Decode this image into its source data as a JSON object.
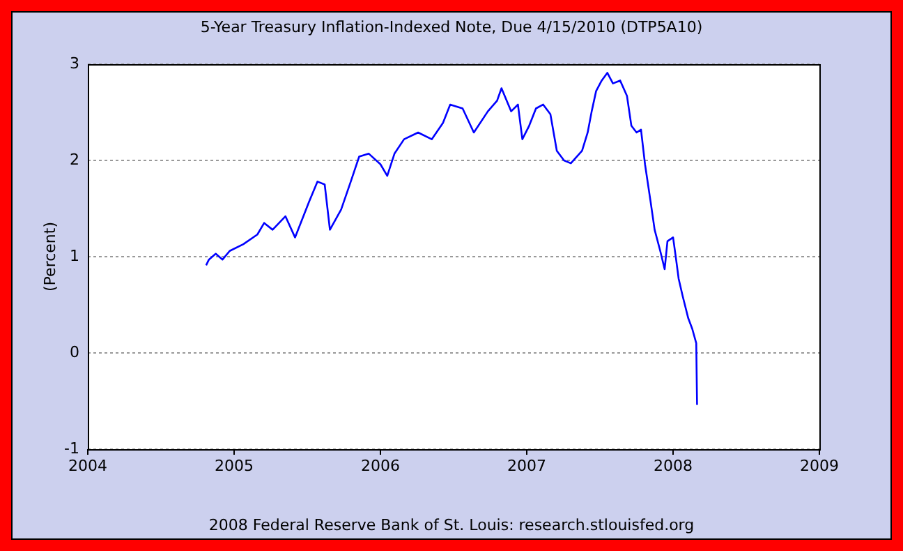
{
  "chart_data": {
    "type": "line",
    "title": "5-Year Treasury Inflation-Indexed Note, Due 4/15/2010 (DTP5A10)",
    "ylabel": "(Percent)",
    "annotations": [
      "2008 Federal Reserve Bank of St. Louis: research.stlouisfed.org"
    ],
    "x": [
      "2004-10-23",
      "2004-10-30",
      "2004-11-16",
      "2004-12-03",
      "2004-12-21",
      "2005-01-24",
      "2005-02-28",
      "2005-03-17",
      "2005-04-07",
      "2005-05-09",
      "2005-06-02",
      "2005-07-07",
      "2005-07-28",
      "2005-08-15",
      "2005-08-28",
      "2005-09-25",
      "2005-10-19",
      "2005-11-09",
      "2005-12-03",
      "2006-01-01",
      "2006-01-18",
      "2006-02-05",
      "2006-03-01",
      "2006-04-05",
      "2006-05-09",
      "2006-06-06",
      "2006-06-24",
      "2006-07-25",
      "2006-08-22",
      "2006-09-26",
      "2006-10-19",
      "2006-10-30",
      "2006-11-23",
      "2006-12-10",
      "2006-12-21",
      "2007-01-07",
      "2007-01-24",
      "2007-02-11",
      "2007-03-01",
      "2007-03-17",
      "2007-04-04",
      "2007-04-21",
      "2007-05-19",
      "2007-06-02",
      "2007-06-12",
      "2007-06-23",
      "2007-07-07",
      "2007-07-21",
      "2007-08-04",
      "2007-08-22",
      "2007-09-08",
      "2007-09-19",
      "2007-10-02",
      "2007-10-13",
      "2007-10-23",
      "2007-11-06",
      "2007-11-16",
      "2007-11-30",
      "2007-12-11",
      "2007-12-18",
      "2008-01-01",
      "2008-01-08",
      "2008-01-15",
      "2008-01-25",
      "2008-02-08",
      "2008-02-18",
      "2008-02-28",
      "2008-03-01"
    ],
    "series": [
      {
        "color": "#0000ff",
        "values": [
          0.91,
          0.97,
          1.03,
          0.97,
          1.06,
          1.13,
          1.23,
          1.35,
          1.28,
          1.42,
          1.2,
          1.57,
          1.78,
          1.75,
          1.28,
          1.49,
          1.78,
          2.04,
          2.07,
          1.96,
          1.84,
          2.07,
          2.22,
          2.29,
          2.22,
          2.39,
          2.58,
          2.54,
          2.29,
          2.51,
          2.62,
          2.75,
          2.51,
          2.58,
          2.22,
          2.36,
          2.54,
          2.58,
          2.48,
          2.1,
          2.0,
          1.97,
          2.1,
          2.29,
          2.51,
          2.72,
          2.83,
          2.91,
          2.8,
          2.83,
          2.67,
          2.36,
          2.29,
          2.32,
          1.96,
          1.57,
          1.28,
          1.06,
          0.87,
          1.16,
          1.2,
          0.99,
          0.77,
          0.59,
          0.36,
          0.25,
          0.1,
          -0.54
        ]
      }
    ],
    "xlim": [
      "2004",
      "2009"
    ],
    "xticks": [
      "2004",
      "2005",
      "2006",
      "2007",
      "2008",
      "2009"
    ],
    "ylim": [
      -1,
      3
    ],
    "yticks": [
      -1,
      0,
      1,
      2,
      3
    ],
    "grid": "y",
    "legend": false,
    "marker": "none",
    "line_style": "solid"
  }
}
